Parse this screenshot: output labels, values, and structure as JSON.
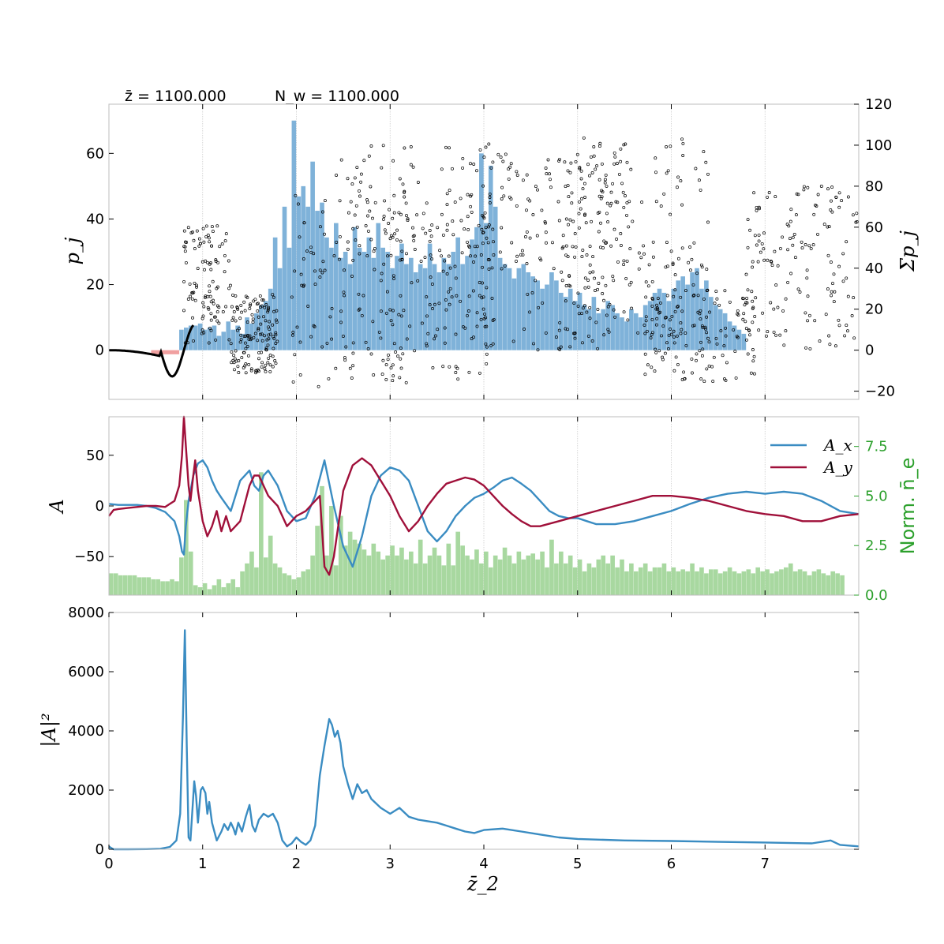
{
  "chart_data": [
    {
      "id": "panel_particles",
      "type": "scatter",
      "header_texts": [
        "z̄ = 1100.000",
        "N_w = 1100.000"
      ],
      "ylabel": "p_j",
      "ylabel_right": "Σp_j",
      "xlim": [
        0,
        8
      ],
      "ylim": [
        -15,
        75
      ],
      "ylim_right": [
        -24,
        120
      ],
      "yticks": [
        0,
        20,
        40,
        60
      ],
      "yticks_right": [
        -20,
        0,
        20,
        40,
        60,
        80,
        100,
        120
      ],
      "grid_x": true,
      "colors": {
        "points": "#000000",
        "hist_blue": "#7fb2d9",
        "hist_red": "#f0a0a0"
      },
      "hist_sum_pj": {
        "bin_start": 0.75,
        "bin_width": 0.05,
        "values": [
          10,
          11,
          12,
          12,
          13,
          10,
          11,
          12,
          7,
          9,
          14,
          10,
          12,
          8,
          16,
          13,
          18,
          22,
          24,
          30,
          55,
          40,
          70,
          50,
          112,
          75,
          80,
          70,
          92,
          68,
          72,
          55,
          50,
          62,
          45,
          48,
          42,
          60,
          50,
          48,
          55,
          45,
          62,
          50,
          48,
          40,
          46,
          52,
          42,
          45,
          38,
          42,
          40,
          52,
          42,
          38,
          45,
          42,
          48,
          55,
          42,
          46,
          54,
          60,
          96,
          62,
          90,
          70,
          45,
          42,
          40,
          35,
          40,
          42,
          38,
          36,
          34,
          30,
          32,
          38,
          34,
          28,
          26,
          30,
          24,
          28,
          22,
          20,
          26,
          18,
          20,
          24,
          22,
          18,
          16,
          14,
          20,
          18,
          16,
          22,
          24,
          28,
          30,
          28,
          24,
          30,
          34,
          36,
          32,
          38,
          40,
          30,
          34,
          26,
          22,
          20,
          18,
          14,
          12,
          10,
          8
        ],
        "negative_bin": {
          "from": 0.45,
          "to": 0.75,
          "value": -2
        }
      }
    },
    {
      "id": "panel_field",
      "type": "line",
      "ylabel": "A",
      "ylabel_right": "Norm. n̄_e",
      "xlim": [
        0,
        8
      ],
      "ylim": [
        -88,
        88
      ],
      "ylim_right": [
        0,
        9
      ],
      "yticks": [
        -50,
        0,
        50
      ],
      "yticks_right": [
        "0.0",
        "2.5",
        "5.0",
        "7.5"
      ],
      "grid_x": true,
      "series": [
        {
          "name": "A_x",
          "color": "#3a8cc2",
          "x": [
            0,
            0.1,
            0.2,
            0.3,
            0.4,
            0.5,
            0.6,
            0.7,
            0.75,
            0.78,
            0.8,
            0.82,
            0.85,
            0.88,
            0.9,
            0.95,
            1.0,
            1.05,
            1.1,
            1.15,
            1.2,
            1.3,
            1.4,
            1.5,
            1.55,
            1.6,
            1.65,
            1.7,
            1.8,
            1.9,
            2.0,
            2.1,
            2.2,
            2.3,
            2.4,
            2.5,
            2.6,
            2.7,
            2.8,
            2.9,
            3.0,
            3.1,
            3.2,
            3.3,
            3.4,
            3.5,
            3.6,
            3.7,
            3.8,
            3.9,
            4.0,
            4.1,
            4.2,
            4.3,
            4.4,
            4.5,
            4.6,
            4.7,
            4.8,
            4.9,
            5.0,
            5.1,
            5.2,
            5.4,
            5.6,
            5.8,
            6.0,
            6.2,
            6.4,
            6.6,
            6.8,
            7.0,
            7.2,
            7.4,
            7.6,
            7.8,
            8.0
          ],
          "values": [
            2,
            1,
            1,
            1,
            0,
            -2,
            -6,
            -15,
            -30,
            -45,
            -48,
            -20,
            5,
            20,
            30,
            42,
            45,
            38,
            25,
            15,
            8,
            -5,
            25,
            35,
            20,
            15,
            30,
            35,
            20,
            -5,
            -15,
            -12,
            10,
            45,
            0,
            -40,
            -60,
            -30,
            10,
            30,
            38,
            35,
            25,
            0,
            -25,
            -35,
            -25,
            -10,
            0,
            8,
            12,
            18,
            25,
            28,
            22,
            15,
            5,
            -5,
            -10,
            -12,
            -12,
            -15,
            -18,
            -18,
            -15,
            -10,
            -5,
            2,
            8,
            12,
            14,
            12,
            14,
            12,
            5,
            -5,
            -8
          ]
        },
        {
          "name": "A_y",
          "color": "#a0103a",
          "x": [
            0,
            0.05,
            0.1,
            0.2,
            0.3,
            0.4,
            0.5,
            0.6,
            0.65,
            0.7,
            0.75,
            0.78,
            0.8,
            0.82,
            0.85,
            0.87,
            0.9,
            0.92,
            0.95,
            1.0,
            1.05,
            1.1,
            1.15,
            1.2,
            1.25,
            1.3,
            1.4,
            1.5,
            1.55,
            1.6,
            1.7,
            1.8,
            1.9,
            2.0,
            2.1,
            2.2,
            2.25,
            2.3,
            2.35,
            2.4,
            2.5,
            2.6,
            2.7,
            2.8,
            2.9,
            3.0,
            3.1,
            3.2,
            3.3,
            3.4,
            3.5,
            3.6,
            3.7,
            3.8,
            3.9,
            4.0,
            4.1,
            4.2,
            4.3,
            4.4,
            4.5,
            4.6,
            4.8,
            5.0,
            5.2,
            5.4,
            5.6,
            5.8,
            6.0,
            6.2,
            6.4,
            6.6,
            6.8,
            7.0,
            7.2,
            7.4,
            7.6,
            7.8,
            8.0
          ],
          "values": [
            -10,
            -4,
            -3,
            -2,
            -1,
            0,
            0,
            -1,
            2,
            5,
            20,
            50,
            88,
            60,
            20,
            5,
            30,
            45,
            15,
            -15,
            -30,
            -20,
            -5,
            -25,
            -10,
            -25,
            -15,
            20,
            30,
            30,
            10,
            0,
            -20,
            -10,
            -5,
            5,
            10,
            -60,
            -68,
            -50,
            15,
            40,
            47,
            40,
            25,
            10,
            -10,
            -25,
            -15,
            0,
            12,
            22,
            25,
            28,
            26,
            20,
            10,
            0,
            -8,
            -15,
            -20,
            -20,
            -15,
            -10,
            -5,
            0,
            5,
            10,
            10,
            8,
            5,
            0,
            -5,
            -8,
            -10,
            -15,
            -15,
            -10,
            -8
          ]
        }
      ],
      "hist_norm_ne": {
        "color": "#a8d8a0",
        "bin_start": 0,
        "bin_width": 0.05,
        "values": [
          1.1,
          1.1,
          1.0,
          1.0,
          1.0,
          1.0,
          0.9,
          0.9,
          0.9,
          0.8,
          0.8,
          0.7,
          0.7,
          0.8,
          0.7,
          1.9,
          4.8,
          2.2,
          0.5,
          0.4,
          0.6,
          0.3,
          0.5,
          0.8,
          0.4,
          0.6,
          0.8,
          0.4,
          1.2,
          1.6,
          2.2,
          1.4,
          6.2,
          1.9,
          3.0,
          1.6,
          1.4,
          1.1,
          1.0,
          0.8,
          0.9,
          1.2,
          1.3,
          2.0,
          3.5,
          5.5,
          2.0,
          4.5,
          1.5,
          4.0,
          2.5,
          3.2,
          2.8,
          2.6,
          2.3,
          2.0,
          2.6,
          2.2,
          1.8,
          2.0,
          2.5,
          2.0,
          2.4,
          1.8,
          2.2,
          1.6,
          2.8,
          1.6,
          2.0,
          2.4,
          2.0,
          1.5,
          2.6,
          1.5,
          3.2,
          2.5,
          2.0,
          1.8,
          2.3,
          1.6,
          2.2,
          1.4,
          2.0,
          1.8,
          2.4,
          2.0,
          1.6,
          2.2,
          1.8,
          2.0,
          2.1,
          1.8,
          2.2,
          1.4,
          2.8,
          1.6,
          2.2,
          1.6,
          2.0,
          1.4,
          1.8,
          1.2,
          1.6,
          1.4,
          1.8,
          2.0,
          1.6,
          2.0,
          1.4,
          1.8,
          1.2,
          1.6,
          1.2,
          1.4,
          1.6,
          1.2,
          1.4,
          1.4,
          1.6,
          1.2,
          1.4,
          1.2,
          1.3,
          1.2,
          1.6,
          1.2,
          1.4,
          1.1,
          1.3,
          1.3,
          1.1,
          1.2,
          1.4,
          1.2,
          1.1,
          1.2,
          1.3,
          1.1,
          1.4,
          1.2,
          1.3,
          1.1,
          1.2,
          1.3,
          1.4,
          1.6,
          1.2,
          1.3,
          1.2,
          1.0,
          1.2,
          1.3,
          1.1,
          1.0,
          1.2,
          1.1,
          1.0
        ]
      },
      "legend": {
        "position": "top-right",
        "entries": [
          "A_x",
          "A_y"
        ]
      }
    },
    {
      "id": "panel_power",
      "type": "line",
      "xlabel": "z̄_2",
      "ylabel": "|A|²",
      "xlim": [
        0,
        8
      ],
      "ylim": [
        0,
        8000
      ],
      "xticks": [
        0,
        1,
        2,
        3,
        4,
        5,
        6,
        7
      ],
      "yticks": [
        0,
        2000,
        4000,
        6000,
        8000
      ],
      "series": [
        {
          "name": "|A|^2",
          "color": "#3a8cc2",
          "x": [
            0,
            0.02,
            0.05,
            0.2,
            0.4,
            0.55,
            0.65,
            0.72,
            0.76,
            0.79,
            0.81,
            0.83,
            0.85,
            0.87,
            0.89,
            0.91,
            0.93,
            0.95,
            0.98,
            1.0,
            1.03,
            1.05,
            1.07,
            1.1,
            1.15,
            1.2,
            1.23,
            1.27,
            1.3,
            1.33,
            1.35,
            1.38,
            1.42,
            1.46,
            1.5,
            1.53,
            1.56,
            1.6,
            1.65,
            1.7,
            1.75,
            1.8,
            1.85,
            1.9,
            1.95,
            2.0,
            2.05,
            2.1,
            2.15,
            2.2,
            2.25,
            2.3,
            2.35,
            2.38,
            2.41,
            2.44,
            2.47,
            2.5,
            2.55,
            2.6,
            2.65,
            2.7,
            2.75,
            2.8,
            2.9,
            3.0,
            3.1,
            3.2,
            3.3,
            3.4,
            3.5,
            3.6,
            3.7,
            3.8,
            3.9,
            4.0,
            4.2,
            4.4,
            4.6,
            4.8,
            5.0,
            5.5,
            6.0,
            6.5,
            7.0,
            7.5,
            7.7,
            7.8,
            8.0
          ],
          "values": [
            100,
            50,
            0,
            0,
            5,
            20,
            80,
            300,
            1200,
            4500,
            7400,
            3500,
            400,
            300,
            1300,
            2300,
            1800,
            900,
            2000,
            2100,
            1900,
            1200,
            1600,
            900,
            300,
            600,
            850,
            650,
            900,
            700,
            500,
            900,
            600,
            1100,
            1500,
            800,
            600,
            1000,
            1200,
            1100,
            1200,
            900,
            300,
            100,
            200,
            400,
            250,
            150,
            300,
            800,
            2500,
            3500,
            4400,
            4200,
            3800,
            4000,
            3600,
            2800,
            2200,
            1700,
            2200,
            1900,
            2000,
            1700,
            1400,
            1200,
            1400,
            1100,
            1000,
            950,
            900,
            800,
            700,
            600,
            550,
            650,
            700,
            600,
            500,
            400,
            350,
            300,
            280,
            250,
            230,
            200,
            300,
            150,
            100
          ]
        }
      ]
    }
  ]
}
